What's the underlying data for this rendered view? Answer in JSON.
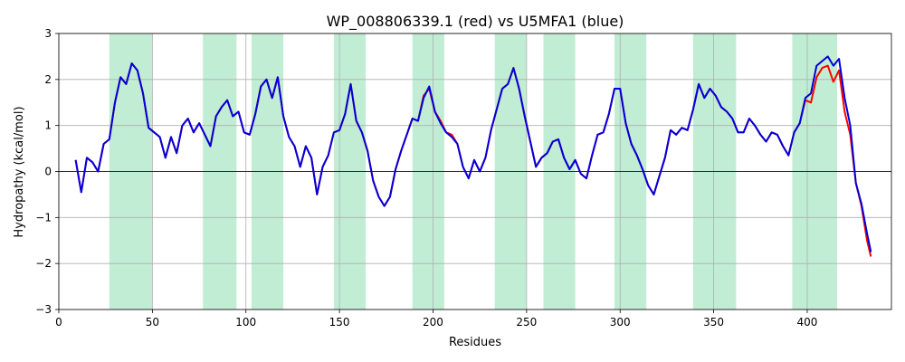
{
  "chart_data": {
    "type": "line",
    "title": "WP_008806339.1 (red) vs U5MFA1 (blue)",
    "xlabel": "Residues",
    "ylabel": "Hydropathy (kcal/mol)",
    "xlim": [
      0,
      445
    ],
    "ylim": [
      -3,
      3
    ],
    "x_ticks": [
      0,
      50,
      100,
      150,
      200,
      250,
      300,
      350,
      400
    ],
    "y_ticks": [
      -3,
      -2,
      -1,
      0,
      1,
      2,
      3
    ],
    "grid": true,
    "zero_line": true,
    "shaded_regions": [
      [
        27,
        50
      ],
      [
        77,
        95
      ],
      [
        103,
        120
      ],
      [
        147,
        164
      ],
      [
        189,
        206
      ],
      [
        233,
        250
      ],
      [
        259,
        276
      ],
      [
        297,
        314
      ],
      [
        339,
        362
      ],
      [
        392,
        416
      ]
    ],
    "colors": {
      "red_series": "#ff0000",
      "blue_series": "#0000dd",
      "region": "#c0edd3",
      "grid": "#b0b0b0"
    },
    "series": [
      {
        "color": "red",
        "x": [
          9,
          12,
          15,
          18,
          21,
          24,
          27,
          30,
          33,
          36,
          39,
          42,
          45,
          48,
          51,
          54,
          57,
          60,
          63,
          66,
          69,
          72,
          75,
          78,
          81,
          84,
          87,
          90,
          93,
          96,
          99,
          102,
          105,
          108,
          111,
          114,
          117,
          120,
          123,
          126,
          129,
          132,
          135,
          138,
          141,
          144,
          147,
          150,
          153,
          156,
          159,
          162,
          165,
          168,
          171,
          174,
          177,
          180,
          183,
          186,
          189,
          192,
          195,
          198,
          201,
          204,
          207,
          210,
          213,
          216,
          219,
          222,
          225,
          228,
          231,
          234,
          237,
          240,
          243,
          246,
          249,
          252,
          255,
          258,
          261,
          264,
          267,
          270,
          273,
          276,
          279,
          282,
          285,
          288,
          291,
          294,
          297,
          300,
          303,
          306,
          309,
          312,
          315,
          318,
          321,
          324,
          327,
          330,
          333,
          336,
          339,
          342,
          345,
          348,
          351,
          354,
          357,
          360,
          363,
          366,
          369,
          372,
          375,
          378,
          381,
          384,
          387,
          390,
          393,
          396,
          399,
          402,
          405,
          408,
          411,
          414,
          417,
          420,
          423,
          426,
          429,
          432,
          434
        ],
        "values": [
          0.25,
          -0.45,
          0.3,
          0.2,
          0.0,
          0.6,
          0.7,
          1.5,
          2.05,
          1.9,
          2.35,
          2.2,
          1.7,
          0.95,
          0.85,
          0.75,
          0.3,
          0.75,
          0.4,
          1.0,
          1.15,
          0.85,
          1.05,
          0.8,
          0.55,
          1.2,
          1.4,
          1.55,
          1.2,
          1.3,
          0.85,
          0.8,
          1.25,
          1.85,
          2.0,
          1.6,
          2.05,
          1.2,
          0.75,
          0.55,
          0.1,
          0.55,
          0.3,
          -0.5,
          0.1,
          0.35,
          0.85,
          0.9,
          1.25,
          1.9,
          1.1,
          0.85,
          0.45,
          -0.2,
          -0.55,
          -0.75,
          -0.55,
          0.05,
          0.45,
          0.8,
          1.15,
          1.1,
          1.65,
          1.8,
          1.3,
          1.1,
          0.85,
          0.8,
          0.6,
          0.1,
          -0.15,
          0.25,
          0.0,
          0.3,
          0.9,
          1.35,
          1.8,
          1.9,
          2.25,
          1.8,
          1.2,
          0.65,
          0.1,
          0.3,
          0.4,
          0.65,
          0.7,
          0.3,
          0.05,
          0.25,
          -0.05,
          -0.15,
          0.35,
          0.8,
          0.85,
          1.25,
          1.8,
          1.8,
          1.05,
          0.6,
          0.35,
          0.05,
          -0.3,
          -0.5,
          -0.1,
          0.3,
          0.9,
          0.8,
          0.95,
          0.9,
          1.35,
          1.9,
          1.6,
          1.8,
          1.65,
          1.4,
          1.3,
          1.15,
          0.85,
          0.85,
          1.15,
          1.0,
          0.8,
          0.65,
          0.85,
          0.8,
          0.55,
          0.35,
          0.85,
          1.05,
          1.55,
          1.5,
          2.05,
          2.25,
          2.3,
          1.95,
          2.2,
          1.3,
          0.8,
          -0.25,
          -0.75,
          -1.5,
          -1.85
        ]
      },
      {
        "color": "blue",
        "x": [
          9,
          12,
          15,
          18,
          21,
          24,
          27,
          30,
          33,
          36,
          39,
          42,
          45,
          48,
          51,
          54,
          57,
          60,
          63,
          66,
          69,
          72,
          75,
          78,
          81,
          84,
          87,
          90,
          93,
          96,
          99,
          102,
          105,
          108,
          111,
          114,
          117,
          120,
          123,
          126,
          129,
          132,
          135,
          138,
          141,
          144,
          147,
          150,
          153,
          156,
          159,
          162,
          165,
          168,
          171,
          174,
          177,
          180,
          183,
          186,
          189,
          192,
          195,
          198,
          201,
          204,
          207,
          210,
          213,
          216,
          219,
          222,
          225,
          228,
          231,
          234,
          237,
          240,
          243,
          246,
          249,
          252,
          255,
          258,
          261,
          264,
          267,
          270,
          273,
          276,
          279,
          282,
          285,
          288,
          291,
          294,
          297,
          300,
          303,
          306,
          309,
          312,
          315,
          318,
          321,
          324,
          327,
          330,
          333,
          336,
          339,
          342,
          345,
          348,
          351,
          354,
          357,
          360,
          363,
          366,
          369,
          372,
          375,
          378,
          381,
          384,
          387,
          390,
          393,
          396,
          399,
          402,
          405,
          408,
          411,
          414,
          417,
          420,
          423,
          426,
          429,
          432,
          434
        ],
        "values": [
          0.25,
          -0.45,
          0.3,
          0.2,
          0.0,
          0.6,
          0.7,
          1.5,
          2.05,
          1.9,
          2.35,
          2.2,
          1.7,
          0.95,
          0.85,
          0.75,
          0.3,
          0.75,
          0.4,
          1.0,
          1.15,
          0.85,
          1.05,
          0.8,
          0.55,
          1.2,
          1.4,
          1.55,
          1.2,
          1.3,
          0.85,
          0.8,
          1.25,
          1.85,
          2.0,
          1.6,
          2.05,
          1.2,
          0.75,
          0.55,
          0.1,
          0.55,
          0.3,
          -0.5,
          0.1,
          0.35,
          0.85,
          0.9,
          1.25,
          1.9,
          1.1,
          0.85,
          0.45,
          -0.2,
          -0.55,
          -0.75,
          -0.55,
          0.05,
          0.45,
          0.8,
          1.15,
          1.1,
          1.6,
          1.85,
          1.3,
          1.05,
          0.85,
          0.75,
          0.6,
          0.1,
          -0.15,
          0.25,
          0.0,
          0.3,
          0.9,
          1.35,
          1.8,
          1.9,
          2.25,
          1.8,
          1.2,
          0.65,
          0.1,
          0.3,
          0.4,
          0.65,
          0.7,
          0.3,
          0.05,
          0.25,
          -0.05,
          -0.15,
          0.35,
          0.8,
          0.85,
          1.25,
          1.8,
          1.8,
          1.05,
          0.6,
          0.35,
          0.05,
          -0.3,
          -0.5,
          -0.1,
          0.3,
          0.9,
          0.8,
          0.95,
          0.9,
          1.35,
          1.9,
          1.6,
          1.8,
          1.65,
          1.4,
          1.3,
          1.15,
          0.85,
          0.85,
          1.15,
          1.0,
          0.8,
          0.65,
          0.85,
          0.8,
          0.55,
          0.35,
          0.85,
          1.05,
          1.6,
          1.7,
          2.3,
          2.4,
          2.5,
          2.3,
          2.45,
          1.6,
          1.0,
          -0.25,
          -0.7,
          -1.35,
          -1.75
        ]
      }
    ]
  }
}
